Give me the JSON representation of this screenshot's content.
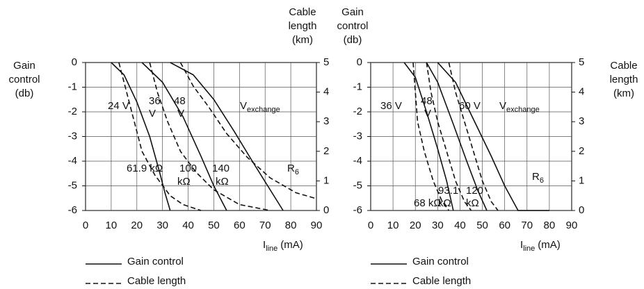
{
  "chart_data": [
    {
      "type": "line",
      "ylabel": [
        "Gain",
        "control",
        "(db)"
      ],
      "y2label": [
        "Cable",
        "length",
        "(km)"
      ],
      "xlabel": {
        "main": "I",
        "sub": "line",
        "unit": "(mA)"
      },
      "xlim": [
        0,
        90
      ],
      "xticks": [
        0,
        10,
        20,
        30,
        40,
        50,
        60,
        70,
        80,
        90
      ],
      "ylim": [
        -6,
        0
      ],
      "yticks": [
        0,
        -1,
        -2,
        -3,
        -4,
        -5,
        -6
      ],
      "y2lim": [
        0,
        5
      ],
      "y2ticks": [
        0,
        1,
        2,
        3,
        4,
        5
      ],
      "grid": true,
      "legend": [
        {
          "name": "Gain control",
          "dash": false
        },
        {
          "name": "Cable length",
          "dash": true
        }
      ],
      "series": [
        {
          "color": "#111",
          "dash": false,
          "x": [
            10,
            15,
            20,
            25,
            29,
            31,
            33
          ],
          "values": [
            0,
            -0.5,
            -1.6,
            -3,
            -4.5,
            -5.3,
            -6
          ]
        },
        {
          "color": "#111",
          "dash": false,
          "x": [
            22,
            30,
            38,
            45,
            50,
            55
          ],
          "values": [
            0,
            -0.8,
            -2.2,
            -3.8,
            -5,
            -6
          ]
        },
        {
          "color": "#111",
          "dash": false,
          "x": [
            33,
            42,
            50,
            58,
            65,
            71,
            77
          ],
          "values": [
            0,
            -0.5,
            -1.5,
            -2.8,
            -4,
            -5,
            -6
          ]
        },
        {
          "color": "#111",
          "dash": true,
          "axis": "y2",
          "x": [
            13,
            16,
            19,
            22,
            27,
            33,
            38,
            45
          ],
          "values": [
            5,
            4,
            3,
            2,
            1.2,
            0.5,
            0.2,
            0
          ]
        },
        {
          "color": "#111",
          "dash": true,
          "axis": "y2",
          "x": [
            25,
            28,
            32,
            37,
            43,
            50,
            60,
            72
          ],
          "values": [
            5,
            4,
            3,
            2,
            1.3,
            0.7,
            0.2,
            0
          ]
        },
        {
          "color": "#111",
          "dash": true,
          "axis": "y2",
          "x": [
            37,
            42,
            48,
            55,
            63,
            72,
            82,
            90
          ],
          "values": [
            5,
            4.2,
            3.5,
            2.6,
            1.8,
            1.1,
            0.6,
            0.4
          ]
        }
      ],
      "annotations": [
        {
          "lines": [
            "24 V"
          ]
        },
        {
          "lines": [
            "36",
            "V"
          ]
        },
        {
          "lines": [
            "48",
            "V"
          ]
        },
        {
          "text": "V",
          "sub": "exchange"
        },
        {
          "lines": [
            "61.9 kΩ"
          ]
        },
        {
          "lines": [
            "100",
            "kΩ"
          ]
        },
        {
          "lines": [
            "140",
            "kΩ"
          ]
        },
        {
          "text": "R",
          "sub": "6"
        }
      ]
    },
    {
      "type": "line",
      "ylabel": [
        "Gain",
        "control",
        "(db)"
      ],
      "y2label": [
        "Cable",
        "length",
        "(km)"
      ],
      "xlabel": {
        "main": "I",
        "sub": "line",
        "unit": "(mA)"
      },
      "xlim": [
        0,
        90
      ],
      "xticks": [
        0,
        10,
        20,
        30,
        40,
        50,
        60,
        70,
        80,
        90
      ],
      "ylim": [
        -6,
        0
      ],
      "yticks": [
        0,
        -1,
        -2,
        -3,
        -4,
        -5,
        -6
      ],
      "y2lim": [
        0,
        5
      ],
      "y2ticks": [
        0,
        1,
        2,
        3,
        4,
        5
      ],
      "grid": true,
      "legend": [
        {
          "name": "Gain control",
          "dash": false
        },
        {
          "name": "Cable length",
          "dash": true
        }
      ],
      "series": [
        {
          "color": "#111",
          "dash": false,
          "x": [
            15,
            20,
            25,
            30,
            34,
            37
          ],
          "values": [
            0,
            -0.6,
            -2,
            -3.5,
            -4.8,
            -6
          ]
        },
        {
          "color": "#111",
          "dash": false,
          "x": [
            25,
            30,
            37,
            43,
            48,
            52
          ],
          "values": [
            0,
            -0.8,
            -2.5,
            -4,
            -5.2,
            -6
          ]
        },
        {
          "color": "#111",
          "dash": false,
          "x": [
            30,
            38,
            46,
            54,
            60,
            66,
            80
          ],
          "values": [
            0,
            -0.8,
            -2.3,
            -3.8,
            -5,
            -6,
            -6
          ]
        },
        {
          "color": "#111",
          "dash": true,
          "axis": "y2",
          "x": [
            19,
            20,
            21,
            24,
            28,
            32,
            35
          ],
          "values": [
            5,
            4,
            3,
            2,
            1,
            0.3,
            0
          ]
        },
        {
          "color": "#111",
          "dash": true,
          "axis": "y2",
          "x": [
            25,
            27,
            30,
            34,
            38,
            42,
            45
          ],
          "values": [
            5,
            4,
            3,
            2,
            1,
            0.3,
            0
          ]
        },
        {
          "color": "#111",
          "dash": true,
          "axis": "y2",
          "x": [
            35,
            38,
            42,
            46,
            50,
            54,
            57
          ],
          "values": [
            5,
            4,
            3,
            2,
            1,
            0.3,
            0
          ]
        }
      ],
      "annotations": [
        {
          "lines": [
            "36 V"
          ]
        },
        {
          "lines": [
            "48",
            "V"
          ]
        },
        {
          "lines": [
            "60 V"
          ]
        },
        {
          "text": "V",
          "sub": "exchange"
        },
        {
          "lines": [
            "68 kΩ"
          ]
        },
        {
          "lines": [
            "93.1",
            "kΩ"
          ]
        },
        {
          "lines": [
            "120",
            "kΩ"
          ]
        },
        {
          "text": "R",
          "sub": "6"
        }
      ]
    }
  ]
}
